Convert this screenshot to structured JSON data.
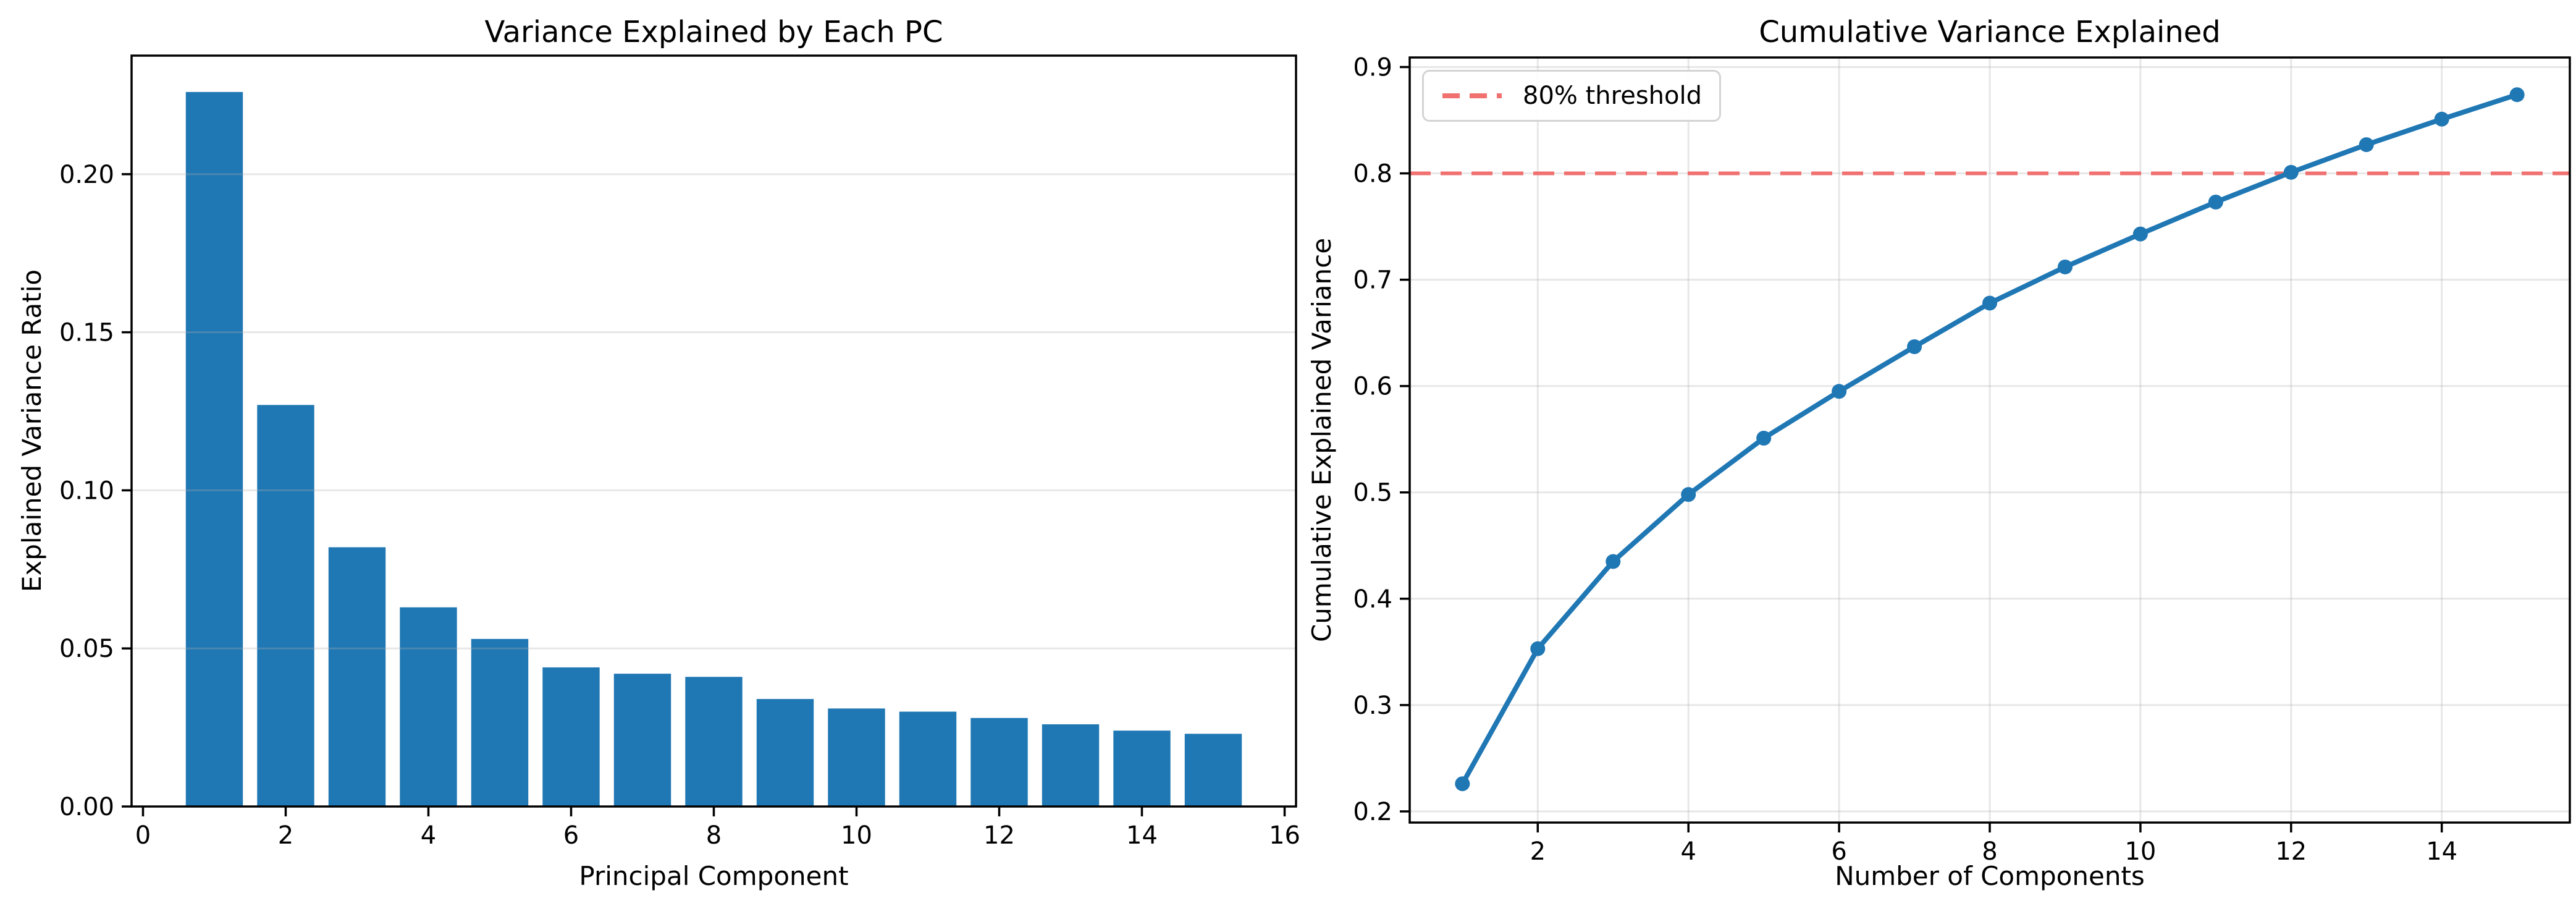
{
  "figure": {
    "background": "#ffffff"
  },
  "colors": {
    "bar": "#1f77b4",
    "line": "#1f77b4",
    "marker": "#1f77b4",
    "threshold": "#f17070",
    "grid": "#b0b0b0",
    "spine": "#000000",
    "legend_border": "#d4d4d4"
  },
  "chart_data": [
    {
      "type": "bar",
      "title": "Variance Explained by Each PC",
      "xlabel": "Principal Component",
      "ylabel": "Explained Variance Ratio",
      "categories": [
        1,
        2,
        3,
        4,
        5,
        6,
        7,
        8,
        9,
        10,
        11,
        12,
        13,
        14,
        15
      ],
      "values": [
        0.226,
        0.127,
        0.082,
        0.063,
        0.053,
        0.044,
        0.042,
        0.041,
        0.034,
        0.031,
        0.03,
        0.028,
        0.026,
        0.024,
        0.023
      ],
      "bar_width": 0.8,
      "xlim": [
        -0.16,
        16.16
      ],
      "ylim": [
        0,
        0.2375
      ],
      "xticks": [
        0,
        2,
        4,
        6,
        8,
        10,
        12,
        14,
        16
      ],
      "xtick_labels": [
        "0",
        "2",
        "4",
        "6",
        "8",
        "10",
        "12",
        "14",
        "16"
      ],
      "yticks": [
        0,
        0.05,
        0.1,
        0.15,
        0.2
      ],
      "ytick_labels": [
        "0.00",
        "0.05",
        "0.10",
        "0.15",
        "0.20"
      ],
      "grid": "y",
      "legend_position": "none"
    },
    {
      "type": "line",
      "title": "Cumulative Variance Explained",
      "xlabel": "Number of Components",
      "ylabel": "Cumulative Explained Variance",
      "x": [
        1,
        2,
        3,
        4,
        5,
        6,
        7,
        8,
        9,
        10,
        11,
        12,
        13,
        14,
        15
      ],
      "values": [
        0.226,
        0.353,
        0.435,
        0.498,
        0.551,
        0.595,
        0.637,
        0.678,
        0.712,
        0.743,
        0.773,
        0.801,
        0.827,
        0.851,
        0.874
      ],
      "marker": "circle",
      "threshold": {
        "y": 0.8,
        "label": "80% threshold",
        "style": "dashed"
      },
      "xlim": [
        0.3,
        15.7
      ],
      "ylim": [
        0.1895,
        0.909
      ],
      "xticks": [
        2,
        4,
        6,
        8,
        10,
        12,
        14
      ],
      "xtick_labels": [
        "2",
        "4",
        "6",
        "8",
        "10",
        "12",
        "14"
      ],
      "yticks": [
        0.2,
        0.3,
        0.4,
        0.5,
        0.6,
        0.7,
        0.8,
        0.9
      ],
      "ytick_labels": [
        "0.2",
        "0.3",
        "0.4",
        "0.5",
        "0.6",
        "0.7",
        "0.8",
        "0.9"
      ],
      "grid": "both",
      "legend_position": "upper left"
    }
  ]
}
